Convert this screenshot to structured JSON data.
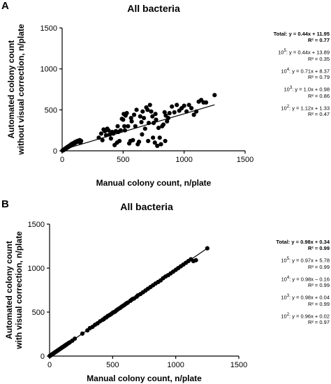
{
  "chart_data": [
    {
      "panel": "A",
      "type": "scatter",
      "title": "All bacteria",
      "xlabel": "Manual colony count, n/plate",
      "ylabel": [
        "Automated colony count",
        "without visual correction, n/plate"
      ],
      "xlim": [
        0,
        1500
      ],
      "ylim": [
        0,
        1500
      ],
      "xticks": [
        0,
        500,
        1000,
        1500
      ],
      "yticks": [
        0,
        500,
        1000,
        1500
      ],
      "fit": {
        "slope": 0.44,
        "intercept": 11.95,
        "x_range": [
          0,
          1250
        ]
      },
      "equations": {
        "total": {
          "line1": "Total: y = 0.44x + 11.95",
          "line2": "R² = 0.77"
        },
        "entries": [
          {
            "sup": "5",
            "line1": "10 : y = 0.44x + 13.89",
            "line2": "R² = 0.35"
          },
          {
            "sup": "4",
            "line1": "10 : y = 0.71x + 8.37",
            "line2": "R² = 0.79"
          },
          {
            "sup": "3",
            "line1": "10 : y = 1.0x + 0.98",
            "line2": "R² = 0.86"
          },
          {
            "sup": "2",
            "line1": "10 : y = 1.12x + 1.33",
            "line2": "R² = 0.47"
          }
        ]
      },
      "points": [
        [
          3,
          3
        ],
        [
          5,
          5
        ],
        [
          8,
          6
        ],
        [
          10,
          10
        ],
        [
          12,
          9
        ],
        [
          15,
          14
        ],
        [
          18,
          17
        ],
        [
          20,
          22
        ],
        [
          24,
          20
        ],
        [
          28,
          30
        ],
        [
          30,
          26
        ],
        [
          35,
          35
        ],
        [
          38,
          40
        ],
        [
          42,
          38
        ],
        [
          45,
          48
        ],
        [
          48,
          44
        ],
        [
          52,
          55
        ],
        [
          55,
          50
        ],
        [
          58,
          60
        ],
        [
          62,
          58
        ],
        [
          65,
          68
        ],
        [
          70,
          62
        ],
        [
          72,
          72
        ],
        [
          75,
          80
        ],
        [
          80,
          75
        ],
        [
          82,
          85
        ],
        [
          88,
          90
        ],
        [
          90,
          82
        ],
        [
          95,
          95
        ],
        [
          100,
          100
        ],
        [
          105,
          92
        ],
        [
          110,
          110
        ],
        [
          115,
          105
        ],
        [
          120,
          115
        ],
        [
          125,
          120
        ],
        [
          130,
          110
        ],
        [
          135,
          125
        ],
        [
          140,
          118
        ],
        [
          145,
          130
        ],
        [
          150,
          100
        ],
        [
          155,
          120
        ],
        [
          300,
          160
        ],
        [
          320,
          210
        ],
        [
          330,
          130
        ],
        [
          340,
          260
        ],
        [
          350,
          240
        ],
        [
          360,
          190
        ],
        [
          370,
          270
        ],
        [
          380,
          250
        ],
        [
          390,
          200
        ],
        [
          400,
          150
        ],
        [
          410,
          230
        ],
        [
          420,
          210
        ],
        [
          430,
          70
        ],
        [
          440,
          240
        ],
        [
          450,
          100
        ],
        [
          455,
          300
        ],
        [
          460,
          230
        ],
        [
          470,
          120
        ],
        [
          480,
          250
        ],
        [
          490,
          390
        ],
        [
          500,
          380
        ],
        [
          505,
          450
        ],
        [
          510,
          300
        ],
        [
          515,
          250
        ],
        [
          520,
          430
        ],
        [
          530,
          460
        ],
        [
          540,
          300
        ],
        [
          550,
          90
        ],
        [
          560,
          120
        ],
        [
          565,
          400
        ],
        [
          570,
          360
        ],
        [
          580,
          130
        ],
        [
          590,
          440
        ],
        [
          600,
          300
        ],
        [
          610,
          500
        ],
        [
          620,
          80
        ],
        [
          630,
          110
        ],
        [
          640,
          420
        ],
        [
          650,
          350
        ],
        [
          655,
          200
        ],
        [
          660,
          480
        ],
        [
          670,
          400
        ],
        [
          680,
          270
        ],
        [
          690,
          530
        ],
        [
          700,
          500
        ],
        [
          705,
          120
        ],
        [
          710,
          340
        ],
        [
          720,
          560
        ],
        [
          730,
          480
        ],
        [
          740,
          420
        ],
        [
          745,
          160
        ],
        [
          750,
          340
        ],
        [
          760,
          100
        ],
        [
          765,
          450
        ],
        [
          770,
          380
        ],
        [
          780,
          60
        ],
        [
          790,
          280
        ],
        [
          800,
          160
        ],
        [
          810,
          80
        ],
        [
          820,
          300
        ],
        [
          830,
          320
        ],
        [
          840,
          470
        ],
        [
          845,
          120
        ],
        [
          850,
          430
        ],
        [
          860,
          360
        ],
        [
          870,
          400
        ],
        [
          880,
          460
        ],
        [
          900,
          540
        ],
        [
          920,
          470
        ],
        [
          940,
          560
        ],
        [
          960,
          490
        ],
        [
          980,
          520
        ],
        [
          1000,
          550
        ],
        [
          1020,
          480
        ],
        [
          1040,
          560
        ],
        [
          1060,
          520
        ],
        [
          1080,
          440
        ],
        [
          1100,
          480
        ],
        [
          1120,
          600
        ],
        [
          1140,
          620
        ],
        [
          1160,
          590
        ],
        [
          1180,
          590
        ],
        [
          1250,
          680
        ]
      ]
    },
    {
      "panel": "B",
      "type": "scatter",
      "title": "All bacteria",
      "xlabel": "Manual colony count, n/plate",
      "ylabel": [
        "Automated colony count",
        "with visual correction, n/plate"
      ],
      "xlim": [
        0,
        1500
      ],
      "ylim": [
        0,
        1500
      ],
      "xticks": [
        0,
        500,
        1000,
        1500
      ],
      "yticks": [
        0,
        500,
        1000,
        1500
      ],
      "fit": {
        "slope": 0.98,
        "intercept": 0.34,
        "x_range": [
          0,
          1250
        ]
      },
      "equations": {
        "total": {
          "line1": "Total: y = 0.98x + 0.34",
          "line2": "R² = 0.99"
        },
        "entries": [
          {
            "sup": "5",
            "line1": "10 : y = 0.97x + 5.78",
            "line2": "R² = 0.99"
          },
          {
            "sup": "4",
            "line1": "10 : y = 0.98x – 0.16",
            "line2": "R² = 0.99"
          },
          {
            "sup": "3",
            "line1": "10 : y = 0.98x + 0.04",
            "line2": "R² = 0.99"
          },
          {
            "sup": "2",
            "line1": "10 : y = 0.96x + 0.02",
            "line2": "R² = 0.97"
          }
        ]
      },
      "points": [
        [
          2,
          2
        ],
        [
          5,
          5
        ],
        [
          8,
          7
        ],
        [
          10,
          10
        ],
        [
          14,
          13
        ],
        [
          18,
          18
        ],
        [
          22,
          21
        ],
        [
          26,
          25
        ],
        [
          30,
          30
        ],
        [
          35,
          34
        ],
        [
          40,
          40
        ],
        [
          45,
          44
        ],
        [
          50,
          49
        ],
        [
          55,
          55
        ],
        [
          60,
          58
        ],
        [
          65,
          64
        ],
        [
          70,
          69
        ],
        [
          75,
          74
        ],
        [
          80,
          79
        ],
        [
          85,
          83
        ],
        [
          90,
          89
        ],
        [
          95,
          93
        ],
        [
          100,
          98
        ],
        [
          105,
          104
        ],
        [
          110,
          108
        ],
        [
          115,
          112
        ],
        [
          120,
          118
        ],
        [
          125,
          122
        ],
        [
          130,
          128
        ],
        [
          140,
          137
        ],
        [
          150,
          147
        ],
        [
          160,
          156
        ],
        [
          180,
          175
        ],
        [
          200,
          198
        ],
        [
          260,
          255
        ],
        [
          300,
          292
        ],
        [
          320,
          318
        ],
        [
          340,
          332
        ],
        [
          360,
          355
        ],
        [
          380,
          372
        ],
        [
          400,
          395
        ],
        [
          420,
          412
        ],
        [
          430,
          420
        ],
        [
          440,
          435
        ],
        [
          450,
          440
        ],
        [
          460,
          455
        ],
        [
          470,
          462
        ],
        [
          480,
          470
        ],
        [
          490,
          480
        ],
        [
          500,
          492
        ],
        [
          510,
          500
        ],
        [
          520,
          505
        ],
        [
          530,
          520
        ],
        [
          540,
          530
        ],
        [
          550,
          540
        ],
        [
          560,
          548
        ],
        [
          570,
          560
        ],
        [
          580,
          570
        ],
        [
          590,
          578
        ],
        [
          600,
          590
        ],
        [
          610,
          600
        ],
        [
          620,
          608
        ],
        [
          640,
          628
        ],
        [
          650,
          640
        ],
        [
          660,
          650
        ],
        [
          670,
          655
        ],
        [
          690,
          675
        ],
        [
          700,
          690
        ],
        [
          720,
          705
        ],
        [
          740,
          725
        ],
        [
          760,
          745
        ],
        [
          780,
          765
        ],
        [
          800,
          785
        ],
        [
          820,
          805
        ],
        [
          840,
          825
        ],
        [
          860,
          842
        ],
        [
          880,
          860
        ],
        [
          900,
          885
        ],
        [
          920,
          905
        ],
        [
          940,
          920
        ],
        [
          960,
          940
        ],
        [
          980,
          960
        ],
        [
          1000,
          980
        ],
        [
          1020,
          1000
        ],
        [
          1040,
          1020
        ],
        [
          1060,
          1040
        ],
        [
          1080,
          1060
        ],
        [
          1100,
          1080
        ],
        [
          1120,
          1100
        ],
        [
          1140,
          1080
        ],
        [
          1160,
          1090
        ],
        [
          1250,
          1225
        ]
      ]
    }
  ]
}
